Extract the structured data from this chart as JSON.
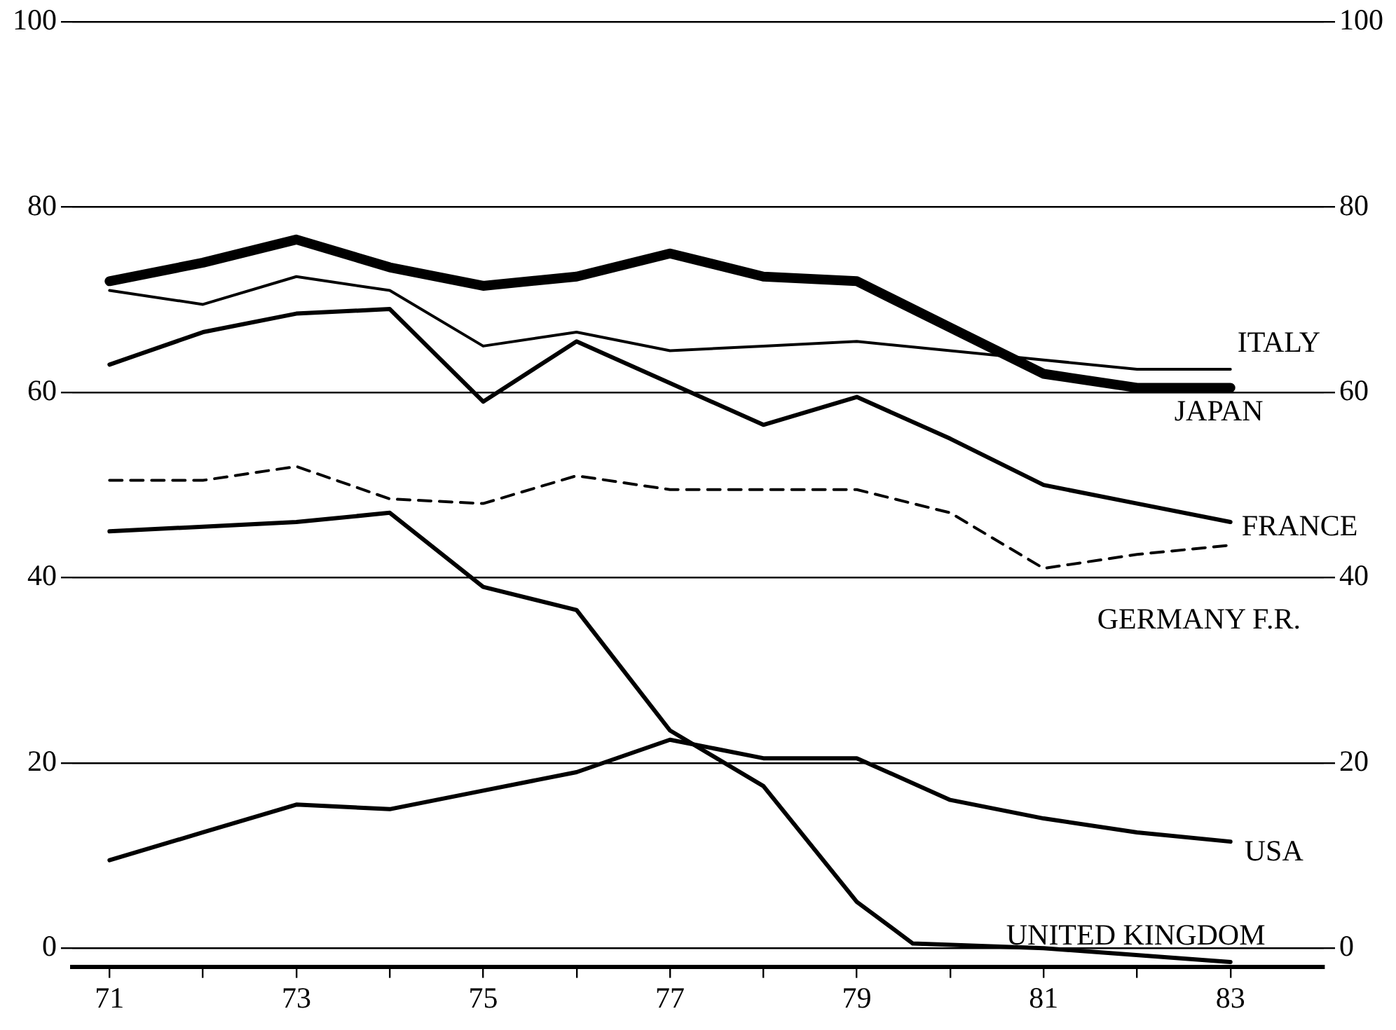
{
  "chart_data": {
    "type": "line",
    "xlim": [
      70.6,
      84
    ],
    "xticks": [
      71,
      {
        "value": 72,
        "label": null
      },
      73,
      {
        "value": 74,
        "label": null
      },
      75,
      {
        "value": 76,
        "label": null
      },
      77,
      {
        "value": 78,
        "label": null
      },
      79,
      {
        "value": 80,
        "label": null
      },
      81,
      {
        "value": 82,
        "label": null
      },
      83
    ],
    "ylim": [
      -2,
      100
    ],
    "yticks": [
      0,
      20,
      40,
      60,
      80,
      100
    ],
    "y2lim": [
      -2,
      100
    ],
    "y2ticks": [
      0,
      20,
      40,
      60,
      80,
      100
    ],
    "grid": "y",
    "legend": "right",
    "marker": "none",
    "series": [
      {
        "name": "JAPAN",
        "color": "#000000",
        "x": [
          71,
          72,
          73,
          74,
          75,
          76,
          77,
          78,
          79,
          80,
          81,
          82,
          83
        ],
        "values": [
          72,
          74,
          76.5,
          73.5,
          71.5,
          72.5,
          75,
          72.5,
          72,
          67,
          62,
          60.5,
          60.5
        ]
      },
      {
        "name": "ITALY",
        "color": "#000000",
        "x": [
          71,
          72,
          73,
          74,
          75,
          76,
          77,
          78,
          79,
          80,
          81,
          82,
          83
        ],
        "values": [
          71,
          69.5,
          72.5,
          71,
          65,
          66.5,
          64.5,
          65,
          65.5,
          64.5,
          63.5,
          62.5,
          62.5
        ]
      },
      {
        "name": "FRANCE",
        "color": "#000000",
        "x": [
          71,
          72,
          73,
          74,
          75,
          76,
          77,
          78,
          79,
          80,
          81,
          82,
          83
        ],
        "values": [
          63,
          66.5,
          68.5,
          69,
          59,
          65.5,
          61,
          56.5,
          59.5,
          55,
          50,
          48,
          46
        ]
      },
      {
        "name": "GERMANY F.R.",
        "color": "#000000",
        "line_style": "dashed",
        "x": [
          71,
          72,
          73,
          74,
          75,
          76,
          77,
          78,
          79,
          80,
          81,
          82,
          83
        ],
        "values": [
          50.5,
          50.5,
          52,
          48.5,
          48,
          51,
          49.5,
          49.5,
          49.5,
          47,
          41,
          42.5,
          43.5
        ]
      },
      {
        "name": "USA",
        "color": "#000000",
        "x": [
          71,
          72,
          73,
          74,
          75,
          76,
          77,
          78,
          79,
          80,
          81,
          82,
          83
        ],
        "values": [
          9.5,
          12.5,
          15.5,
          15,
          17,
          19,
          22.5,
          20.5,
          20.5,
          16,
          14,
          12.5,
          11.5
        ]
      },
      {
        "name": "UNITED KINGDOM",
        "color": "#000000",
        "x": [
          71,
          72,
          73,
          74,
          75,
          76,
          77,
          78,
          79,
          79.6,
          81,
          83
        ],
        "values": [
          45,
          45.5,
          46,
          47,
          39,
          36.5,
          23.5,
          17.5,
          5,
          0.5,
          0,
          -1.5
        ]
      }
    ]
  }
}
